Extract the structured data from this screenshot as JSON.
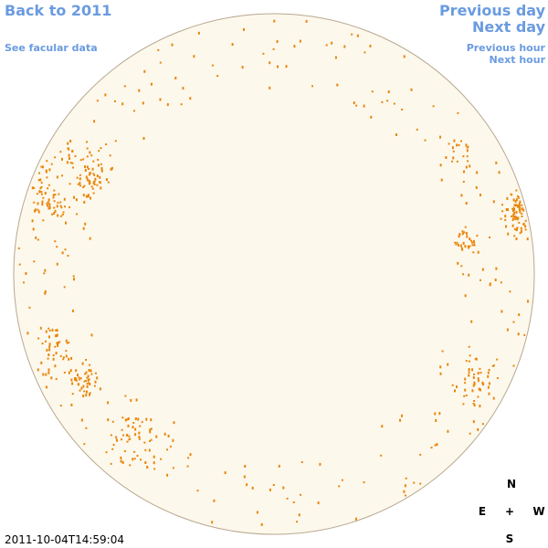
{
  "nav": {
    "back": "Back to 2011",
    "facular": "See facular data",
    "previous_day": "Previous day",
    "next_day": "Next day",
    "previous_hour": "Previous hour",
    "next_hour": "Next hour"
  },
  "timestamp": "2011-10-04T14:59:04",
  "compass": {
    "north": "N",
    "east": "E",
    "center": "+",
    "west": "W",
    "south": "S"
  }
}
